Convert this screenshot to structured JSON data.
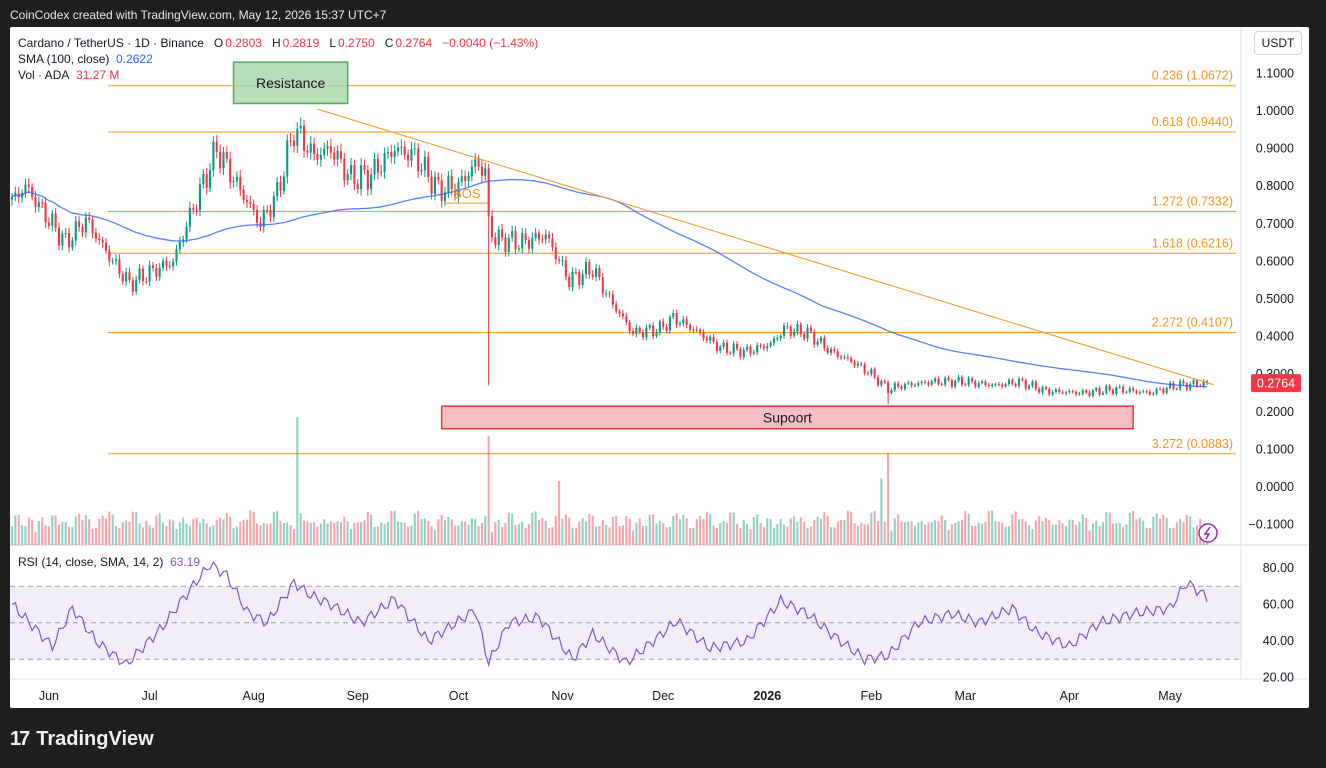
{
  "credit": "CoinCodex created with TradingView.com, May 12, 2026 15:37 UTC+7",
  "legend": {
    "symbol": "Cardano / TetherUS · 1D · Binance",
    "o_key": "O",
    "o": "0.2803",
    "h_key": "H",
    "h": "0.2819",
    "l_key": "L",
    "l": "0.2750",
    "c_key": "C",
    "c": "0.2764",
    "change": "−0.0040 (−1.43%)",
    "sma_label": "SMA (100, close)",
    "sma_value": "0.2622",
    "vol_label": "Vol · ADA",
    "vol_value": "31.27 M"
  },
  "currency": "USDT",
  "rsi_legend": {
    "label": "RSI (14, close, SMA, 14, 2)",
    "value": "63.19"
  },
  "logo": {
    "mark": "17",
    "name": "TradingView"
  },
  "chart_data": {
    "type": "candlestick",
    "price_ticks": [
      "1.1000",
      "1.0000",
      "0.9000",
      "0.8000",
      "0.7000",
      "0.6000",
      "0.5000",
      "0.4000",
      "0.3000",
      "0.2000",
      "0.1000",
      "0.0000",
      "−0.1000"
    ],
    "price_tick_values": [
      1.1,
      1.0,
      0.9,
      0.8,
      0.7,
      0.6,
      0.5,
      0.4,
      0.3,
      0.2,
      0.1,
      0.0,
      -0.1
    ],
    "rsi_ticks": [
      "80.00",
      "60.00",
      "40.00",
      "20.00"
    ],
    "rsi_tick_values": [
      80,
      60,
      40,
      20
    ],
    "time_ticks": [
      {
        "label": "Jun",
        "date": "2025-06-01"
      },
      {
        "label": "Jul",
        "date": "2025-07-01"
      },
      {
        "label": "Aug",
        "date": "2025-08-01"
      },
      {
        "label": "Sep",
        "date": "2025-09-01"
      },
      {
        "label": "Oct",
        "date": "2025-10-01"
      },
      {
        "label": "Nov",
        "date": "2025-11-01"
      },
      {
        "label": "Dec",
        "date": "2025-12-01"
      },
      {
        "label": "2026",
        "date": "2026-01-01",
        "bold": true
      },
      {
        "label": "Feb",
        "date": "2026-02-01"
      },
      {
        "label": "Mar",
        "date": "2026-03-01"
      },
      {
        "label": "Apr",
        "date": "2026-04-01"
      },
      {
        "label": "May",
        "date": "2026-05-01"
      }
    ],
    "date_range": [
      "2025-05-21",
      "2026-05-12"
    ],
    "fib_levels": [
      {
        "label": "0.236 (1.0672)",
        "value": 1.0672
      },
      {
        "label": "0.618 (0.9440)",
        "value": 0.944
      },
      {
        "label": "1.272 (0.7332)",
        "value": 0.7332
      },
      {
        "label": "1.618 (0.6216)",
        "value": 0.6216
      },
      {
        "label": "2.272 (0.4107)",
        "value": 0.4107
      },
      {
        "label": "3.272 (0.0883)",
        "value": 0.0883
      }
    ],
    "resistance_box": {
      "label": "Resistance",
      "date_from": "2025-07-26",
      "date_to": "2025-08-29",
      "high": 1.13,
      "low": 1.02
    },
    "support_box": {
      "label": "Supoort",
      "date_from": "2025-09-26",
      "date_to": "2026-04-20",
      "high": 0.215,
      "low": 0.155
    },
    "bos_label": "BOS",
    "bos_level": 0.755,
    "trendline": {
      "from_date": "2025-08-20",
      "from_value": 1.005,
      "to_date": "2026-05-14",
      "to_value": 0.272
    },
    "current_price": {
      "label": "0.2764",
      "value": 0.2764
    },
    "rsi_bands": {
      "upper": 70,
      "mid": 50,
      "lower": 30
    },
    "anchors": [
      [
        "2025-05-21",
        0.76
      ],
      [
        "2025-05-25",
        0.8
      ],
      [
        "2025-06-01",
        0.71
      ],
      [
        "2025-06-06",
        0.65
      ],
      [
        "2025-06-12",
        0.71
      ],
      [
        "2025-06-20",
        0.6
      ],
      [
        "2025-06-25",
        0.54
      ],
      [
        "2025-07-01",
        0.57
      ],
      [
        "2025-07-08",
        0.6
      ],
      [
        "2025-07-13",
        0.72
      ],
      [
        "2025-07-18",
        0.83
      ],
      [
        "2025-07-21",
        0.9
      ],
      [
        "2025-07-26",
        0.82
      ],
      [
        "2025-08-03",
        0.7
      ],
      [
        "2025-08-08",
        0.78
      ],
      [
        "2025-08-13",
        0.95
      ],
      [
        "2025-08-15",
        0.93
      ],
      [
        "2025-08-19",
        0.88
      ],
      [
        "2025-08-24",
        0.9
      ],
      [
        "2025-08-30",
        0.82
      ],
      [
        "2025-09-05",
        0.83
      ],
      [
        "2025-09-12",
        0.9
      ],
      [
        "2025-09-18",
        0.88
      ],
      [
        "2025-09-25",
        0.79
      ],
      [
        "2025-10-01",
        0.8
      ],
      [
        "2025-10-06",
        0.86
      ],
      [
        "2025-10-09",
        0.84
      ],
      [
        "2025-10-10",
        0.7
      ],
      [
        "2025-10-12",
        0.66
      ],
      [
        "2025-10-20",
        0.65
      ],
      [
        "2025-10-27",
        0.67
      ],
      [
        "2025-11-03",
        0.55
      ],
      [
        "2025-11-10",
        0.58
      ],
      [
        "2025-11-15",
        0.5
      ],
      [
        "2025-11-22",
        0.41
      ],
      [
        "2025-11-30",
        0.42
      ],
      [
        "2025-12-04",
        0.45
      ],
      [
        "2025-12-10",
        0.42
      ],
      [
        "2025-12-18",
        0.37
      ],
      [
        "2025-12-26",
        0.36
      ],
      [
        "2026-01-02",
        0.38
      ],
      [
        "2026-01-06",
        0.42
      ],
      [
        "2026-01-13",
        0.41
      ],
      [
        "2026-01-20",
        0.36
      ],
      [
        "2026-01-27",
        0.33
      ],
      [
        "2026-02-01",
        0.3
      ],
      [
        "2026-02-06",
        0.26
      ],
      [
        "2026-02-10",
        0.27
      ],
      [
        "2026-02-20",
        0.28
      ],
      [
        "2026-03-01",
        0.28
      ],
      [
        "2026-03-10",
        0.27
      ],
      [
        "2026-03-17",
        0.28
      ],
      [
        "2026-03-25",
        0.255
      ],
      [
        "2026-04-05",
        0.25
      ],
      [
        "2026-04-15",
        0.26
      ],
      [
        "2026-04-25",
        0.25
      ],
      [
        "2026-05-03",
        0.27
      ],
      [
        "2026-05-12",
        0.2764
      ]
    ],
    "spikes": [
      {
        "date": "2025-10-10",
        "low": 0.27
      },
      {
        "date": "2026-02-06",
        "low": 0.22
      }
    ],
    "volume_spikes": [
      {
        "date": "2025-08-14",
        "value": 1.0
      },
      {
        "date": "2025-10-10",
        "value": 0.85
      },
      {
        "date": "2026-02-06",
        "value": 0.72
      },
      {
        "date": "2025-10-31",
        "value": 0.5
      },
      {
        "date": "2026-02-04",
        "value": 0.52
      }
    ],
    "rsi_anchors": [
      [
        "2025-05-21",
        60
      ],
      [
        "2025-06-02",
        37
      ],
      [
        "2025-06-08",
        58
      ],
      [
        "2025-06-15",
        40
      ],
      [
        "2025-06-24",
        27
      ],
      [
        "2025-07-05",
        48
      ],
      [
        "2025-07-10",
        61
      ],
      [
        "2025-07-19",
        82
      ],
      [
        "2025-07-24",
        76
      ],
      [
        "2025-07-30",
        56
      ],
      [
        "2025-08-05",
        50
      ],
      [
        "2025-08-13",
        72
      ],
      [
        "2025-08-18",
        65
      ],
      [
        "2025-08-24",
        60
      ],
      [
        "2025-09-02",
        50
      ],
      [
        "2025-09-12",
        63
      ],
      [
        "2025-09-22",
        40
      ],
      [
        "2025-10-06",
        57
      ],
      [
        "2025-10-10",
        28
      ],
      [
        "2025-10-16",
        50
      ],
      [
        "2025-10-25",
        53
      ],
      [
        "2025-11-04",
        30
      ],
      [
        "2025-11-10",
        44
      ],
      [
        "2025-11-20",
        28
      ],
      [
        "2025-11-30",
        43
      ],
      [
        "2025-12-05",
        51
      ],
      [
        "2025-12-15",
        36
      ],
      [
        "2025-12-26",
        40
      ],
      [
        "2026-01-05",
        62
      ],
      [
        "2026-01-13",
        55
      ],
      [
        "2026-01-20",
        44
      ],
      [
        "2026-01-30",
        30
      ],
      [
        "2026-02-06",
        32
      ],
      [
        "2026-02-15",
        50
      ],
      [
        "2026-02-25",
        55
      ],
      [
        "2026-03-05",
        50
      ],
      [
        "2026-03-15",
        58
      ],
      [
        "2026-03-22",
        45
      ],
      [
        "2026-04-01",
        37
      ],
      [
        "2026-04-10",
        50
      ],
      [
        "2026-04-20",
        55
      ],
      [
        "2026-05-01",
        58
      ],
      [
        "2026-05-06",
        72
      ],
      [
        "2026-05-12",
        64
      ]
    ]
  }
}
